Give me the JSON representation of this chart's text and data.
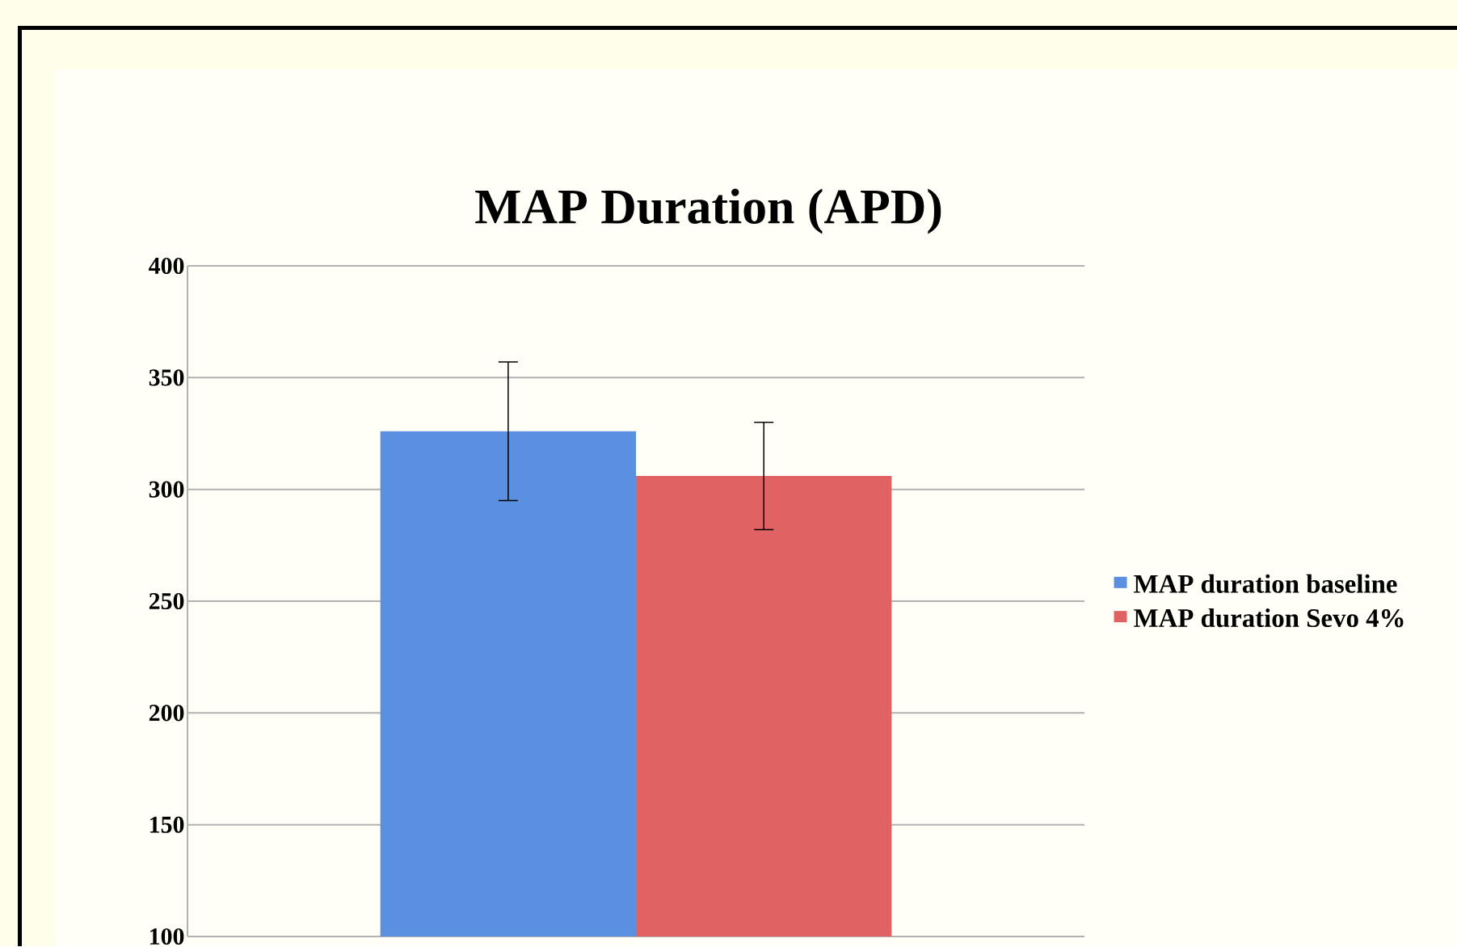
{
  "chart_data": {
    "type": "bar",
    "title": "MAP Duration (APD)",
    "categories": [
      null
    ],
    "series": [
      {
        "name": "MAP duration baseline",
        "color": "#5b8fdf",
        "values": [
          326
        ],
        "errors": [
          31
        ]
      },
      {
        "name": "MAP duration Sevo 4%",
        "color": "#e06262",
        "values": [
          306
        ],
        "errors": [
          24
        ]
      }
    ],
    "ylim": [
      100,
      400
    ],
    "yticks": [
      100,
      150,
      200,
      250,
      300,
      350,
      400
    ],
    "grid": "y",
    "legend": "right"
  }
}
